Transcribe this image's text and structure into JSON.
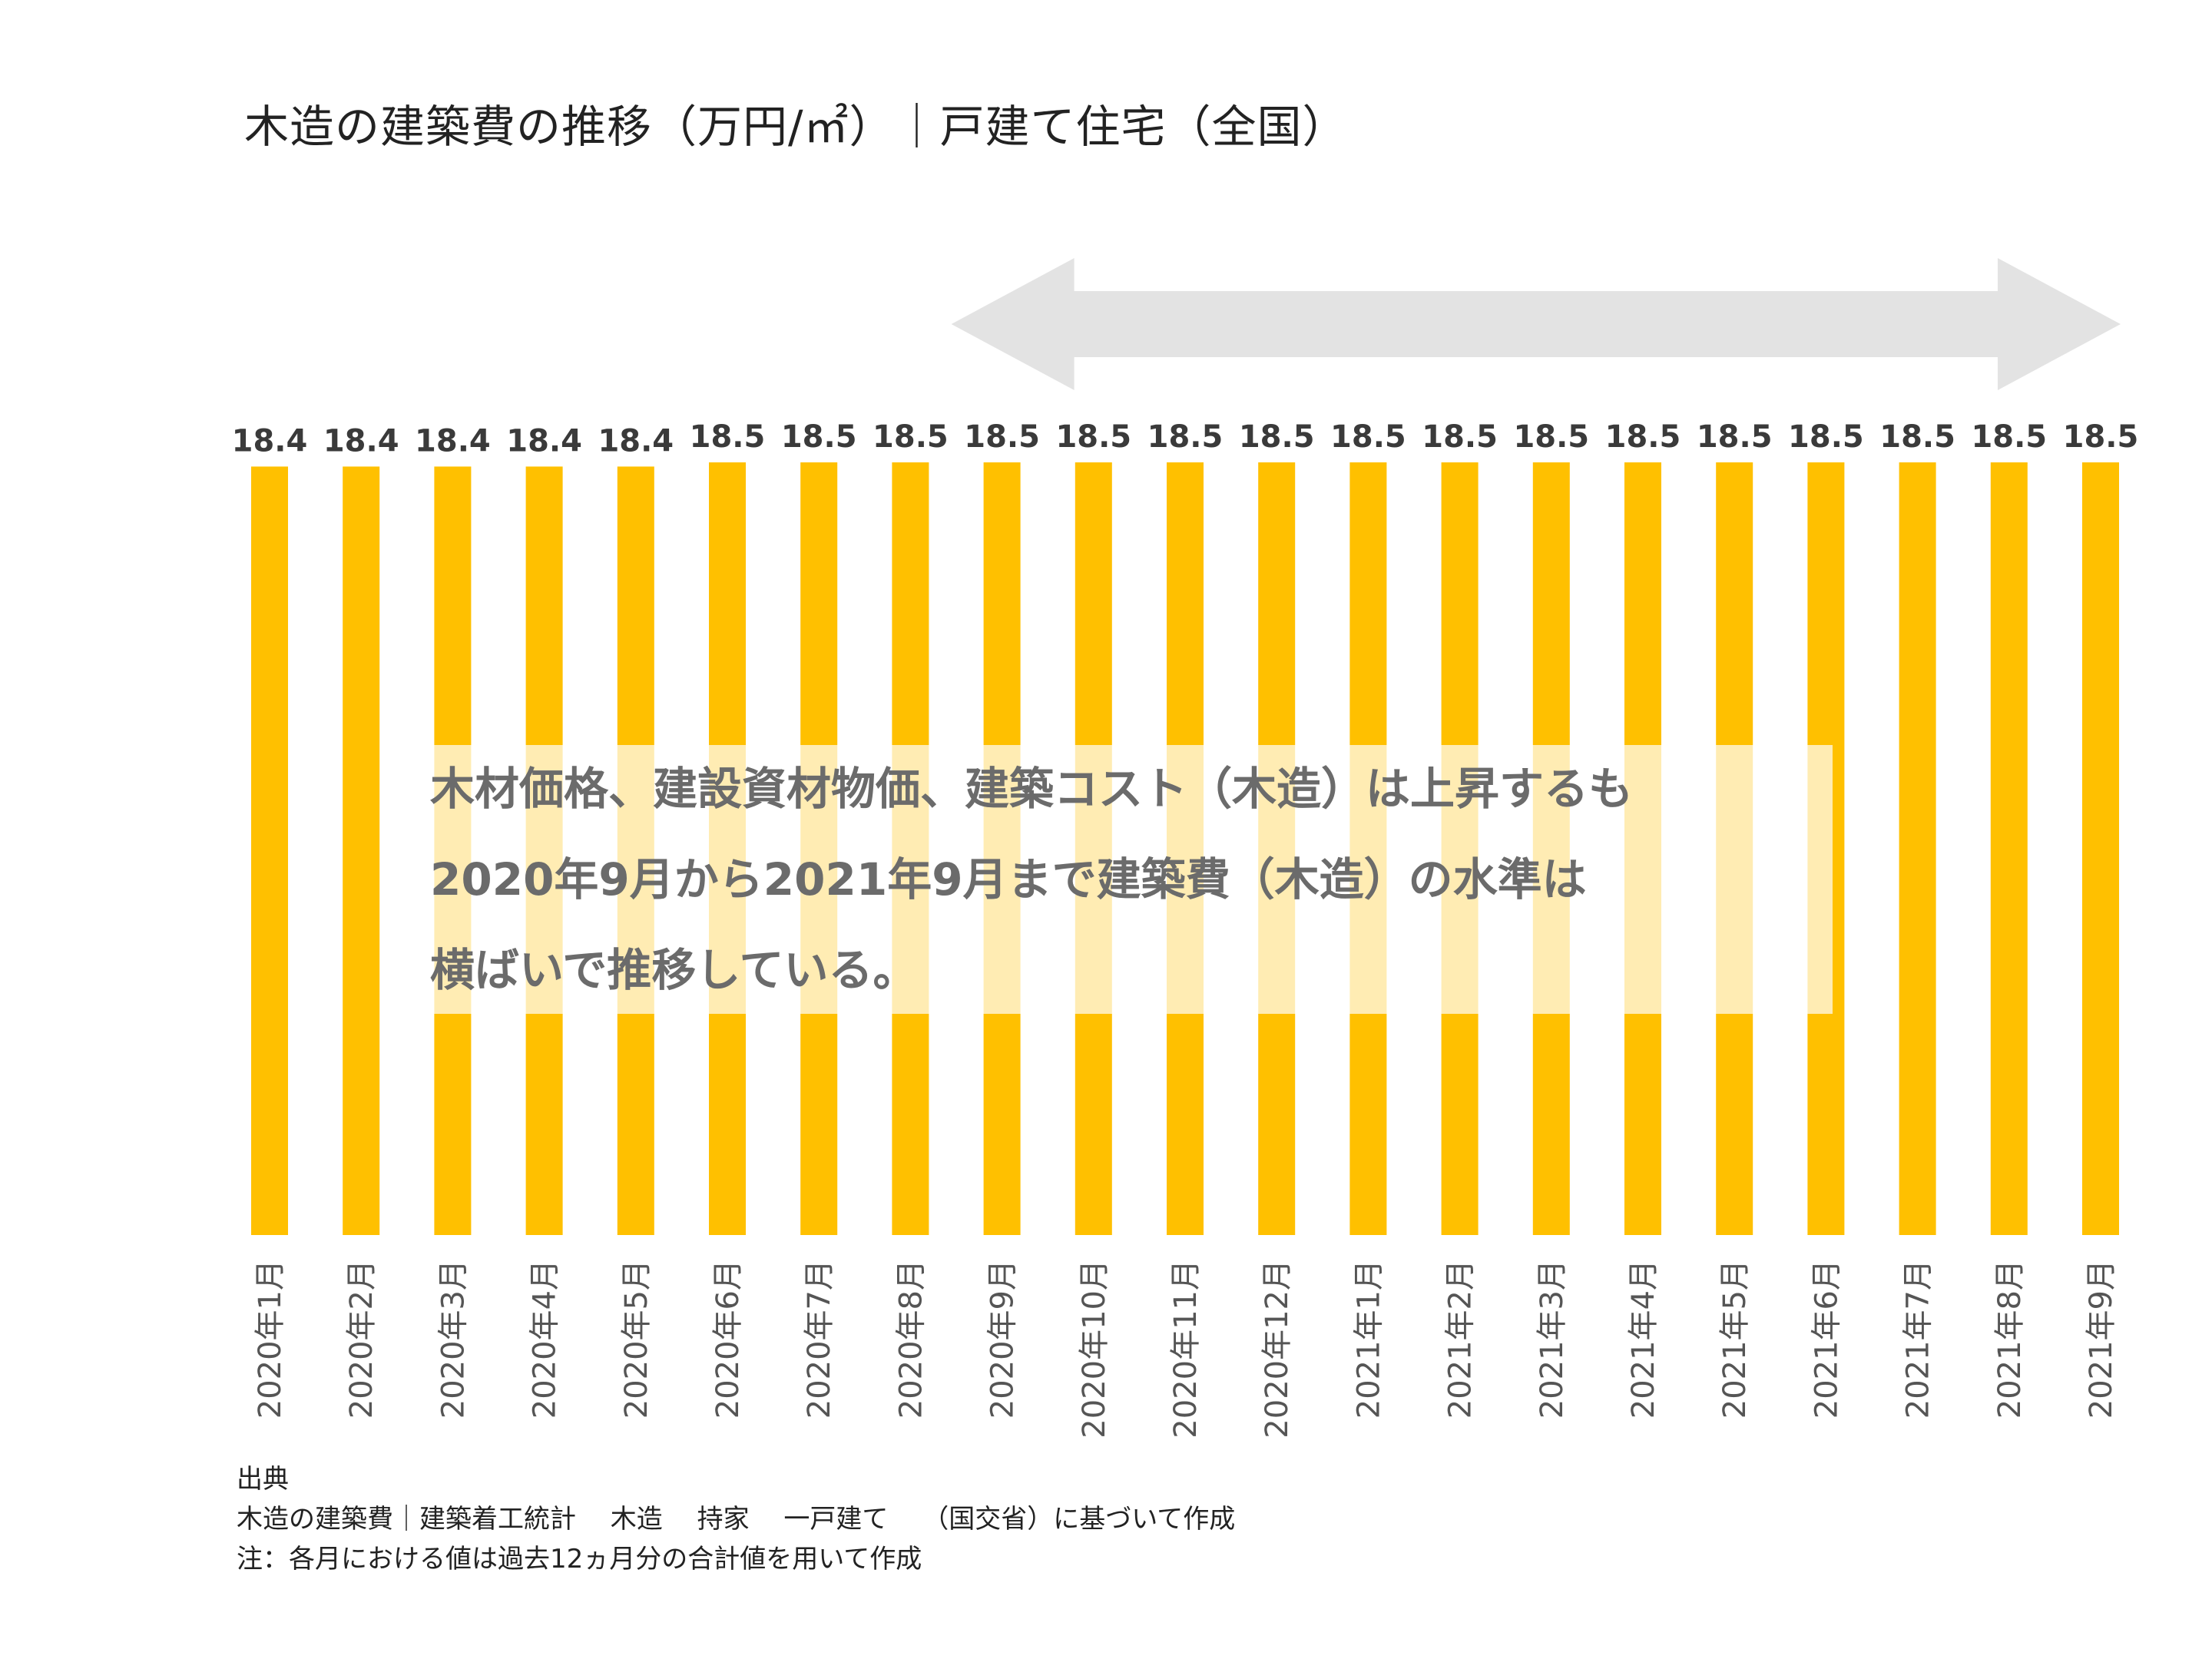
{
  "chart_data": {
    "type": "bar",
    "title": "木造の建築費の推移（万円/㎡）｜戸建て住宅（全国）",
    "categories": [
      "2020年1月",
      "2020年2月",
      "2020年3月",
      "2020年4月",
      "2020年5月",
      "2020年6月",
      "2020年7月",
      "2020年8月",
      "2020年9月",
      "2020年10月",
      "2020年11月",
      "2020年12月",
      "2021年1月",
      "2021年2月",
      "2021年3月",
      "2021年4月",
      "2021年5月",
      "2021年6月",
      "2021年7月",
      "2021年8月",
      "2021年9月"
    ],
    "values": [
      18.4,
      18.4,
      18.4,
      18.4,
      18.4,
      18.5,
      18.5,
      18.5,
      18.5,
      18.5,
      18.5,
      18.5,
      18.5,
      18.5,
      18.5,
      18.5,
      18.5,
      18.5,
      18.5,
      18.5,
      18.5
    ],
    "value_labels": [
      "18.4",
      "18.4",
      "18.4",
      "18.4",
      "18.4",
      "18.5",
      "18.5",
      "18.5",
      "18.5",
      "18.5",
      "18.5",
      "18.5",
      "18.5",
      "18.5",
      "18.5",
      "18.5",
      "18.5",
      "18.5",
      "18.5",
      "18.5",
      "18.5"
    ],
    "highlight_range": [
      "2020年9月",
      "2021年9月"
    ],
    "bar_color": "#FFC000",
    "arrow_color": "#E3E3E3",
    "callout_bg_color": "#FFFFFF",
    "xlabel": "",
    "ylabel": "",
    "grid": false,
    "legend": false
  },
  "callout": {
    "lines": [
      "木材価格、建設資材物価、建築コスト（木造）は上昇するも",
      "2020年9月から2021年9月まで建築費（木造）の水準は",
      "横ばいで推移している。"
    ]
  },
  "source": {
    "heading": "出典",
    "line1": "木造の建築費｜建築着工統計　 木造　 持家　 一戸建て　 （国交省）に基づいて作成",
    "line2": "注：各月における値は過去12ヵ月分の合計値を用いて作成"
  }
}
